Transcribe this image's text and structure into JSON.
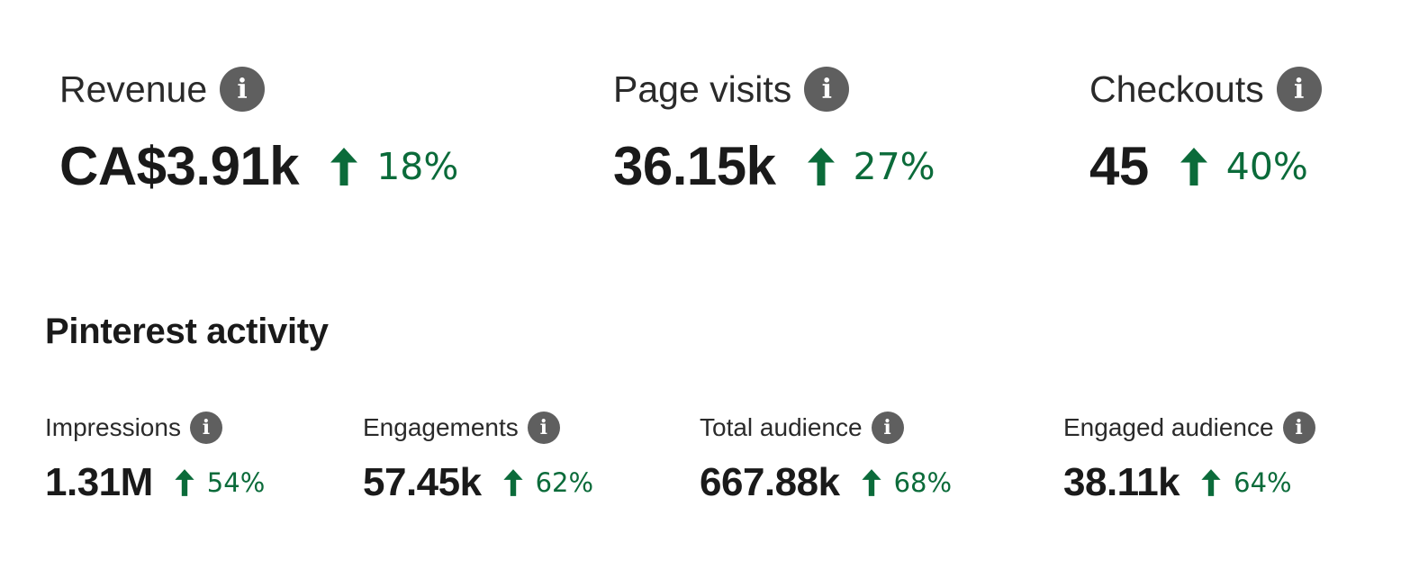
{
  "top_metrics": [
    {
      "label": "Revenue",
      "value": "CA$3.91k",
      "change": "18%"
    },
    {
      "label": "Page visits",
      "value": "36.15k",
      "change": "27%"
    },
    {
      "label": "Checkouts",
      "value": "45",
      "change": "40%"
    }
  ],
  "section": {
    "title": "Pinterest activity"
  },
  "activity_metrics": [
    {
      "label": "Impressions",
      "value": "1.31M",
      "change": "54%"
    },
    {
      "label": "Engagements",
      "value": "57.45k",
      "change": "62%"
    },
    {
      "label": "Total audience",
      "value": "667.88k",
      "change": "68%"
    },
    {
      "label": "Engaged audience",
      "value": "38.11k",
      "change": "64%"
    }
  ],
  "info_icon_glyph": "i",
  "colors": {
    "positive_change": "#0b6b3a",
    "info_icon_bg": "#5f5f5f",
    "text": "#1a1a1a"
  },
  "icons": {
    "info": "info-icon",
    "trend": "arrow-up-icon"
  }
}
